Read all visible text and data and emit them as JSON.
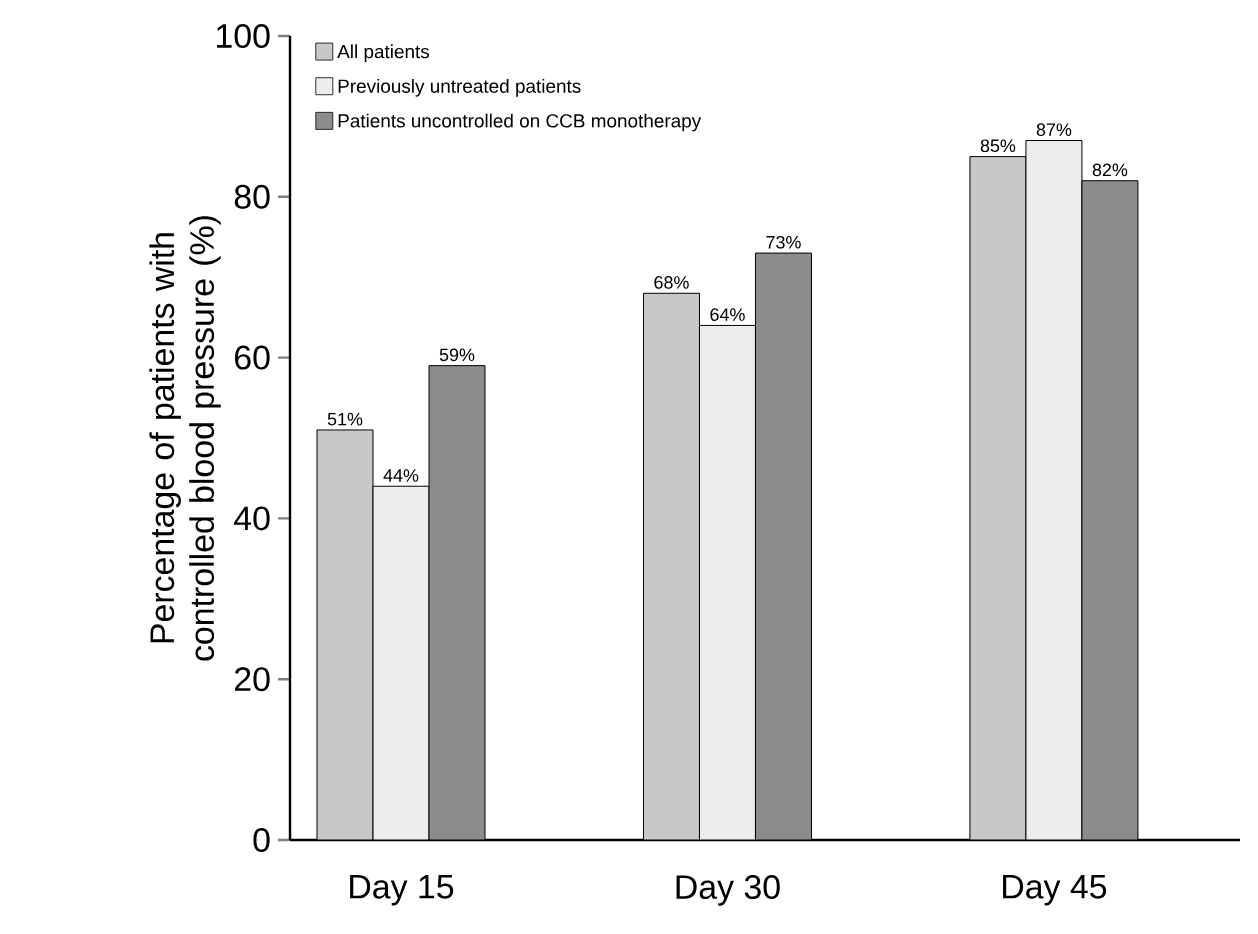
{
  "chart_data": {
    "type": "bar",
    "ylabel": "Percentage of patients with controlled blood pressure (%)",
    "categories": [
      "Day 15",
      "Day 30",
      "Day 45"
    ],
    "series": [
      {
        "name": "All patients",
        "color": "#c8c8c8",
        "values": [
          51,
          68,
          85
        ],
        "value_labels": [
          "51%",
          "68%",
          "85%"
        ]
      },
      {
        "name": "Previously untreated patients",
        "color": "#ededed",
        "values": [
          44,
          64,
          87
        ],
        "value_labels": [
          "44%",
          "64%",
          "87%"
        ]
      },
      {
        "name": "Patients uncontrolled on CCB monotherapy",
        "color": "#8c8c8c",
        "values": [
          59,
          73,
          82
        ],
        "value_labels": [
          "59%",
          "73%",
          "82%"
        ]
      }
    ],
    "ylim": [
      0,
      100
    ],
    "yticks": [
      0,
      20,
      40,
      60,
      80,
      100
    ],
    "grid": false,
    "legend": "top left"
  }
}
